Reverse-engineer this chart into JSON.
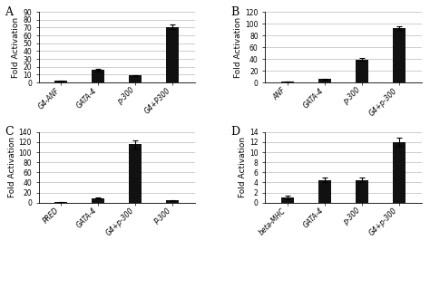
{
  "A": {
    "categories": [
      "G4-ANF",
      "GATA-4",
      "p-300",
      "G4+P300"
    ],
    "values": [
      2.0,
      16,
      9,
      71
    ],
    "errors": [
      0.4,
      1.8,
      0.6,
      3.0
    ],
    "ylim": [
      0,
      90
    ],
    "yticks": [
      0,
      10,
      20,
      30,
      40,
      50,
      60,
      70,
      80,
      90
    ],
    "ylabel": "Fold Activation",
    "label": "A"
  },
  "B": {
    "categories": [
      "ANF",
      "GATA-4",
      "p-300",
      "G4+p-300"
    ],
    "values": [
      1.5,
      6,
      39,
      93
    ],
    "errors": [
      0.3,
      0.8,
      2.5,
      3.0
    ],
    "ylim": [
      0,
      120
    ],
    "yticks": [
      0,
      20,
      40,
      60,
      80,
      100,
      120
    ],
    "ylabel": "Fold Activation",
    "label": "B"
  },
  "C": {
    "categories": [
      "PRED",
      "GATA-4",
      "G4+p-300",
      "P-300"
    ],
    "values": [
      1.5,
      9,
      116,
      4
    ],
    "errors": [
      0.3,
      1.0,
      8.0,
      0.5
    ],
    "ylim": [
      0,
      140
    ],
    "yticks": [
      0,
      20,
      40,
      60,
      80,
      100,
      120,
      140
    ],
    "ylabel": "Fold Activation",
    "label": "C"
  },
  "D": {
    "categories": [
      "beta-MHC",
      "GATA-4",
      "p-300",
      "G4+p-300"
    ],
    "values": [
      1.0,
      4.5,
      4.5,
      12.0
    ],
    "errors": [
      0.3,
      0.5,
      0.5,
      0.8
    ],
    "ylim": [
      0,
      14
    ],
    "yticks": [
      0,
      2,
      4,
      6,
      8,
      10,
      12,
      14
    ],
    "ylabel": "Fold Activation",
    "label": "D"
  },
  "bar_color": "#111111",
  "bar_width": 0.35,
  "tick_fontsize": 5.5,
  "axis_label_fontsize": 6.5,
  "figure_label_fontsize": 9,
  "background_color": "#ffffff",
  "grid_color": "#bbbbbb",
  "grid_linewidth": 0.5
}
